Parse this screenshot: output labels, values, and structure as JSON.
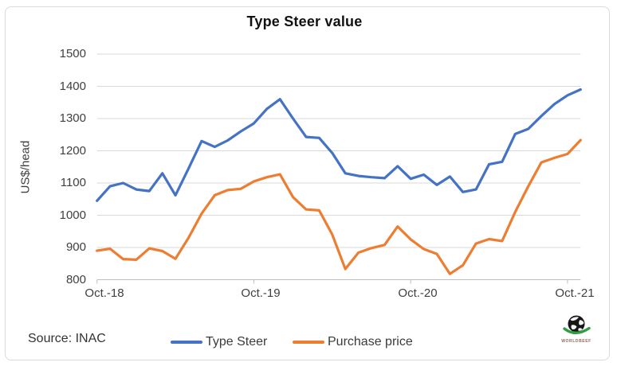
{
  "title": "Type Steer value",
  "source": "Source: INAC",
  "logo_text": "WORLDBEEF",
  "colors": {
    "type_steer": "#4472C4",
    "purchase_price": "#ED7D31",
    "gridline": "#D9D9D9",
    "axis": "#BFBFBF",
    "text": "#404040"
  },
  "y_axis": {
    "label": "US$/head",
    "ticks": [
      "1500",
      "1400",
      "1300",
      "1200",
      "1100",
      "1000",
      "900",
      "800"
    ]
  },
  "x_axis": {
    "ticks": [
      "Oct.-18",
      "Oct.-19",
      "Oct.-20",
      "Oct.-21"
    ]
  },
  "legend": [
    {
      "label": "Type Steer",
      "color": "#4472C4"
    },
    {
      "label": "Purchase price",
      "color": "#ED7D31"
    }
  ],
  "chart_data": {
    "type": "line",
    "title": "Type Steer value",
    "xlabel": "",
    "ylabel": "US$/head",
    "ylim": [
      800,
      1500
    ],
    "grid": "horizontal",
    "legend_position": "bottom",
    "n_points": 38,
    "x_unit": "month",
    "x_range": "Oct-2018 to Nov-2021",
    "x_tick_indices": [
      0,
      12,
      24,
      36
    ],
    "x_tick_labels": [
      "Oct.-18",
      "Oct.-19",
      "Oct.-20",
      "Oct.-21"
    ],
    "series": [
      {
        "name": "Type Steer",
        "color": "#4472C4",
        "values": [
          1045,
          1090,
          1100,
          1080,
          1075,
          1130,
          1062,
          1145,
          1230,
          1212,
          1232,
          1260,
          1285,
          1330,
          1360,
          1300,
          1243,
          1240,
          1193,
          1130,
          1122,
          1118,
          1115,
          1152,
          1113,
          1126,
          1094,
          1120,
          1072,
          1080,
          1158,
          1166,
          1252,
          1268,
          1308,
          1345,
          1372,
          1390
        ]
      },
      {
        "name": "Purchase price",
        "color": "#ED7D31",
        "values": [
          890,
          896,
          864,
          862,
          897,
          889,
          865,
          930,
          1005,
          1062,
          1078,
          1082,
          1105,
          1118,
          1127,
          1056,
          1018,
          1015,
          940,
          833,
          884,
          898,
          908,
          965,
          925,
          895,
          880,
          818,
          845,
          912,
          926,
          920,
          1010,
          1090,
          1164,
          1178,
          1190,
          1233
        ]
      }
    ]
  }
}
